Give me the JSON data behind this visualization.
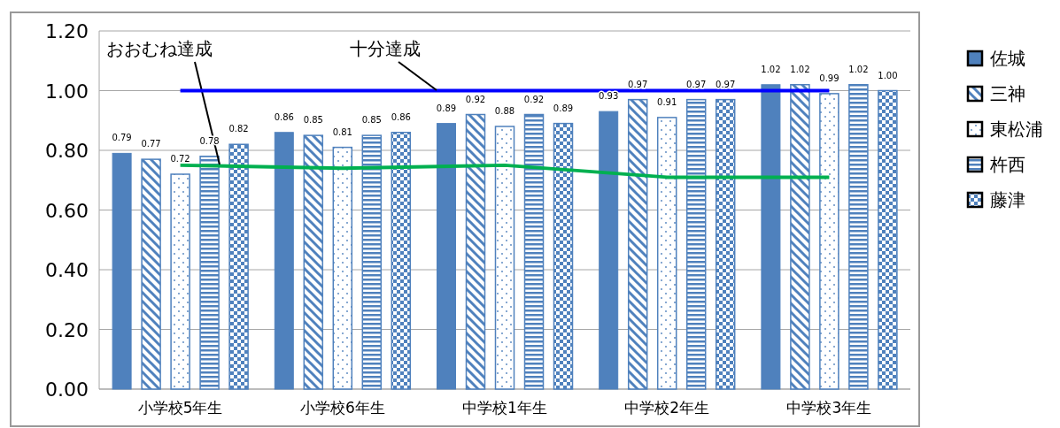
{
  "chart_data": {
    "type": "bar",
    "categories": [
      "小学校5年生",
      "小学校6年生",
      "中学校1年生",
      "中学校2年生",
      "中学校3年生"
    ],
    "series": [
      {
        "name": "佐城",
        "color": "#4f81bd",
        "values": [
          0.79,
          0.86,
          0.89,
          0.93,
          1.02
        ],
        "value_labels": [
          "0.79",
          "0.86",
          "0.89",
          "0.93",
          "1.02"
        ]
      },
      {
        "name": "三神",
        "color": "#4f81bd",
        "values": [
          0.77,
          0.85,
          0.92,
          0.97,
          1.02
        ],
        "value_labels": [
          "0.77",
          "0.85",
          "0.92",
          "0.97",
          "1.02"
        ]
      },
      {
        "name": "東松浦",
        "color": "#4f81bd",
        "values": [
          0.72,
          0.81,
          0.88,
          0.91,
          0.99
        ],
        "value_labels": [
          "0.72",
          "0.81",
          "0.88",
          "0.91",
          "0.99"
        ]
      },
      {
        "name": "杵西",
        "color": "#4f81bd",
        "values": [
          0.78,
          0.85,
          0.92,
          0.97,
          1.02
        ],
        "value_labels": [
          "0.78",
          "0.85",
          "0.92",
          "0.97",
          "1.02"
        ]
      },
      {
        "name": "藤津",
        "color": "#4f81bd",
        "values": [
          0.82,
          0.86,
          0.89,
          0.97,
          1.0
        ],
        "value_labels": [
          "0.82",
          "0.86",
          "0.89",
          "0.97",
          "1.00"
        ]
      },
      {
        "name": "おおむね達成",
        "type": "line",
        "color": "#00b050",
        "values": [
          0.75,
          0.74,
          0.75,
          0.71,
          0.71
        ]
      },
      {
        "name": "十分達成",
        "type": "line",
        "color": "#0000ff",
        "values": [
          1.0,
          1.0,
          1.0,
          1.0,
          1.0
        ]
      }
    ],
    "ylim": [
      0,
      1.2
    ],
    "yticks": [
      {
        "value": 0,
        "label": "0.00"
      },
      {
        "value": 0.2,
        "label": "0.20"
      },
      {
        "value": 0.4,
        "label": "0.40"
      },
      {
        "value": 0.6,
        "label": "0.60"
      },
      {
        "value": 0.8,
        "label": "0.80"
      },
      {
        "value": 1.0,
        "label": "1.00"
      },
      {
        "value": 1.2,
        "label": "1.20"
      }
    ],
    "grid": "y",
    "legend": "right"
  }
}
